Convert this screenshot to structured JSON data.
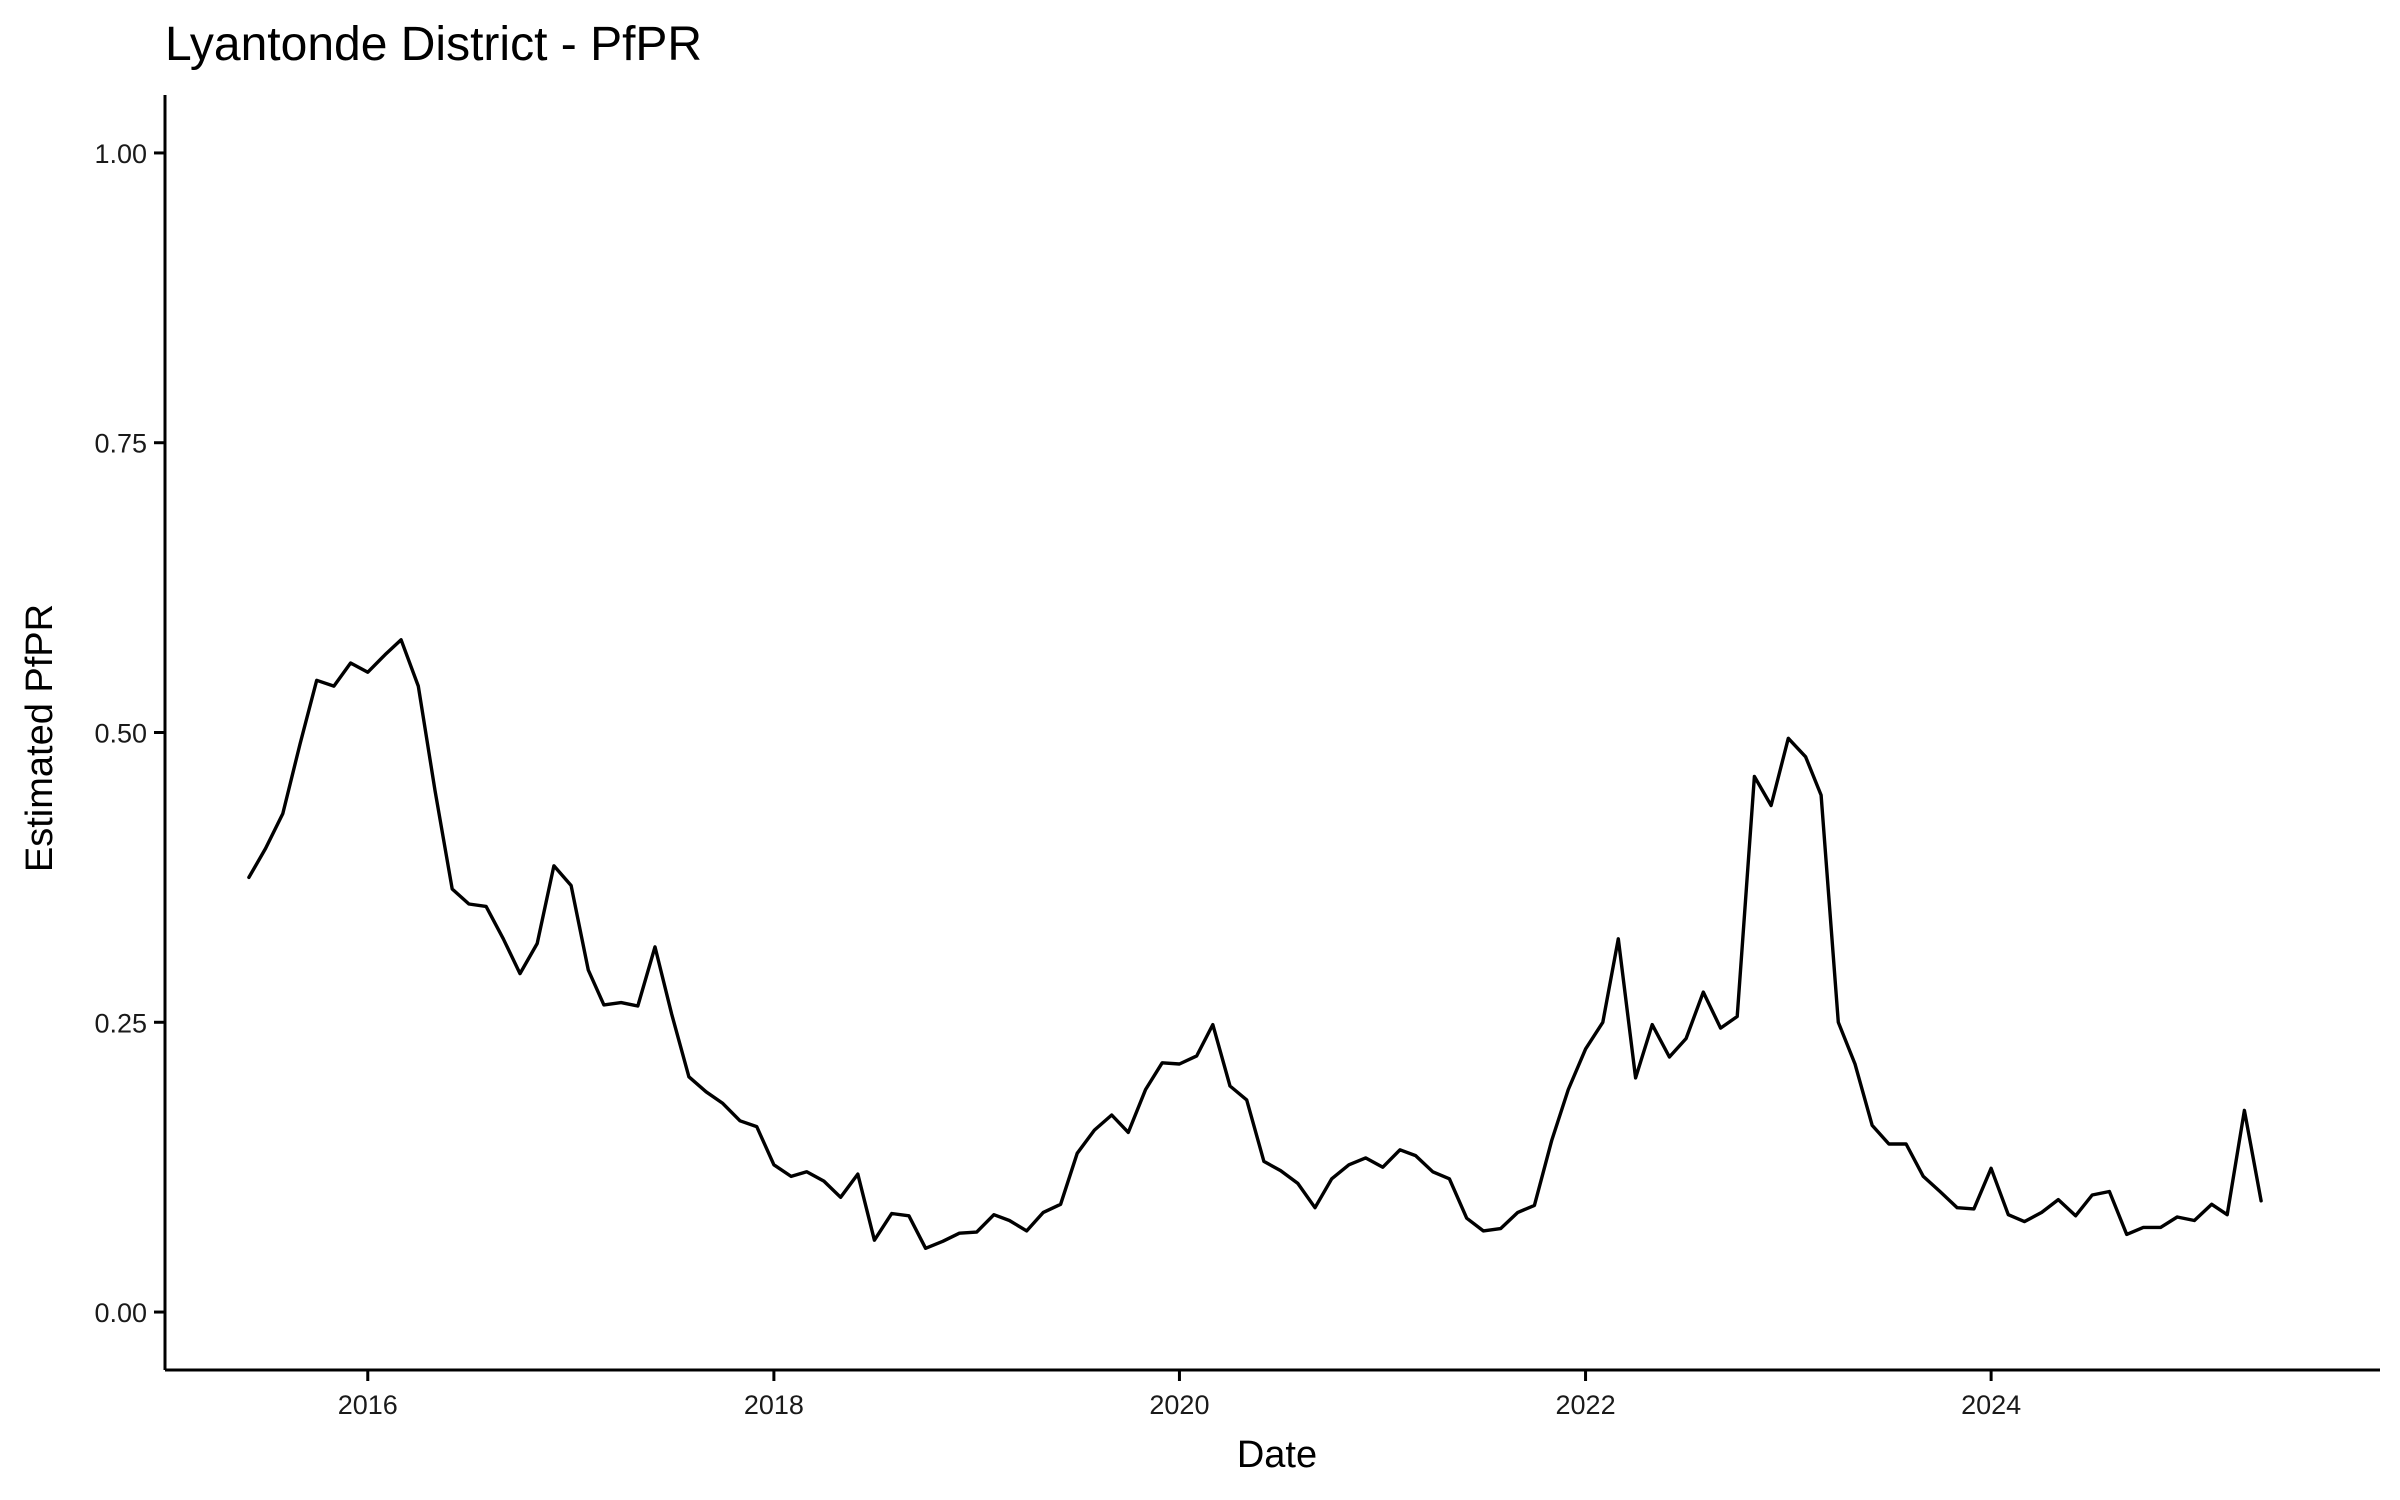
{
  "chart_data": {
    "type": "line",
    "title": "Lyantonde District - PfPR",
    "xlabel": "Date",
    "ylabel": "Estimated PfPR",
    "x_type": "date",
    "xlim": [
      "2015-01-01",
      "2025-12-01"
    ],
    "ylim": [
      -0.05,
      1.05
    ],
    "x_ticks": [
      "2016-01-01",
      "2018-01-01",
      "2020-01-01",
      "2022-01-01",
      "2024-01-01"
    ],
    "x_tick_labels": [
      "2016",
      "2018",
      "2020",
      "2022",
      "2024"
    ],
    "y_ticks": [
      0,
      0.25,
      0.5,
      0.75,
      1
    ],
    "y_tick_labels": [
      "0.00",
      "0.25",
      "0.50",
      "0.75",
      "1.00"
    ],
    "grid": false,
    "legend": "none",
    "line_color": "#000000",
    "series": [
      {
        "x": [
          "2015-06-01",
          "2015-07-01",
          "2015-08-01",
          "2015-09-01",
          "2015-10-01",
          "2015-11-01",
          "2015-12-01",
          "2016-01-01",
          "2016-02-01",
          "2016-03-01",
          "2016-04-01",
          "2016-05-01",
          "2016-06-01",
          "2016-07-01",
          "2016-08-01",
          "2016-09-01",
          "2016-10-01",
          "2016-11-01",
          "2016-12-01",
          "2017-01-01",
          "2017-02-01",
          "2017-03-01",
          "2017-04-01",
          "2017-05-01",
          "2017-06-01",
          "2017-07-01",
          "2017-08-01",
          "2017-09-01",
          "2017-10-01",
          "2017-11-01",
          "2017-12-01",
          "2018-01-01",
          "2018-02-01",
          "2018-03-01",
          "2018-04-01",
          "2018-05-01",
          "2018-06-01",
          "2018-07-01",
          "2018-08-01",
          "2018-09-01",
          "2018-10-01",
          "2018-11-01",
          "2018-12-01",
          "2019-01-01",
          "2019-02-01",
          "2019-03-01",
          "2019-04-01",
          "2019-05-01",
          "2019-06-01",
          "2019-07-01",
          "2019-08-01",
          "2019-09-01",
          "2019-10-01",
          "2019-11-01",
          "2019-12-01",
          "2020-01-01",
          "2020-02-01",
          "2020-03-01",
          "2020-04-01",
          "2020-05-01",
          "2020-06-01",
          "2020-07-01",
          "2020-08-01",
          "2020-09-01",
          "2020-10-01",
          "2020-11-01",
          "2020-12-01",
          "2021-01-01",
          "2021-02-01",
          "2021-03-01",
          "2021-04-01",
          "2021-05-01",
          "2021-06-01",
          "2021-07-01",
          "2021-08-01",
          "2021-09-01",
          "2021-10-01",
          "2021-11-01",
          "2021-12-01",
          "2022-01-01",
          "2022-02-01",
          "2022-03-01",
          "2022-04-01",
          "2022-05-01",
          "2022-06-01",
          "2022-07-01",
          "2022-08-01",
          "2022-09-01",
          "2022-10-01",
          "2022-11-01",
          "2022-12-01",
          "2023-01-01",
          "2023-02-01",
          "2023-03-01",
          "2023-04-01",
          "2023-05-01",
          "2023-06-01",
          "2023-07-01",
          "2023-08-01",
          "2023-09-01",
          "2023-10-01",
          "2023-11-01",
          "2023-12-01",
          "2024-01-01",
          "2024-02-01",
          "2024-03-01",
          "2024-04-01",
          "2024-05-01",
          "2024-06-01",
          "2024-07-01",
          "2024-08-01",
          "2024-09-01",
          "2024-10-01",
          "2024-11-01",
          "2024-12-01",
          "2025-01-01",
          "2025-02-01",
          "2025-03-01",
          "2025-04-01",
          "2025-05-01"
        ],
        "values": [
          0.375,
          0.4,
          0.43,
          0.49,
          0.545,
          0.54,
          0.56,
          0.552,
          0.567,
          0.58,
          0.54,
          0.45,
          0.365,
          0.352,
          0.35,
          0.322,
          0.292,
          0.318,
          0.385,
          0.368,
          0.295,
          0.265,
          0.267,
          0.264,
          0.315,
          0.257,
          0.203,
          0.19,
          0.18,
          0.165,
          0.16,
          0.127,
          0.117,
          0.121,
          0.113,
          0.099,
          0.119,
          0.062,
          0.085,
          0.083,
          0.055,
          0.061,
          0.068,
          0.069,
          0.084,
          0.079,
          0.07,
          0.086,
          0.093,
          0.137,
          0.157,
          0.17,
          0.155,
          0.192,
          0.215,
          0.214,
          0.221,
          0.248,
          0.195,
          0.183,
          0.13,
          0.122,
          0.111,
          0.09,
          0.115,
          0.127,
          0.133,
          0.125,
          0.14,
          0.135,
          0.121,
          0.115,
          0.081,
          0.07,
          0.072,
          0.086,
          0.092,
          0.148,
          0.192,
          0.227,
          0.25,
          0.322,
          0.202,
          0.248,
          0.22,
          0.236,
          0.276,
          0.245,
          0.255,
          0.462,
          0.437,
          0.495,
          0.479,
          0.446,
          0.25,
          0.214,
          0.161,
          0.145,
          0.145,
          0.117,
          0.104,
          0.09,
          0.089,
          0.124,
          0.084,
          0.078,
          0.086,
          0.097,
          0.083,
          0.101,
          0.104,
          0.067,
          0.073,
          0.073,
          0.082,
          0.079,
          0.093,
          0.084,
          0.174,
          0.096
        ]
      }
    ]
  }
}
